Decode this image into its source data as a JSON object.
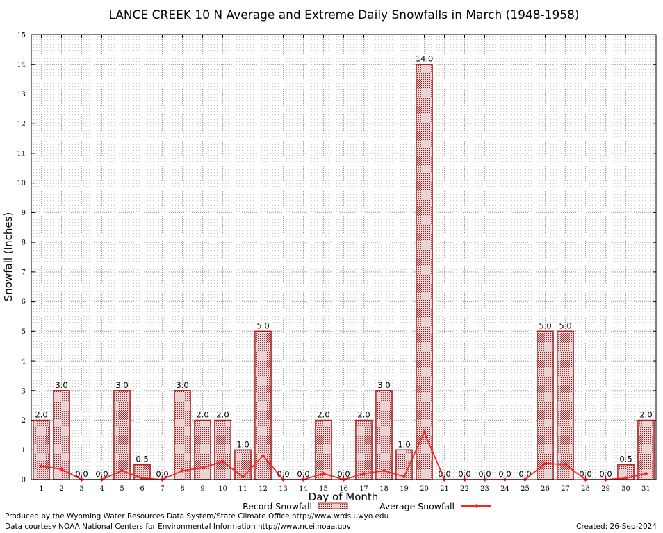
{
  "chart_data": {
    "type": "bar",
    "title": "LANCE CREEK 10 N Average and Extreme Daily Snowfalls in March (1948-1958)",
    "xlabel": "Day of Month",
    "ylabel": "Snowfall (Inches)",
    "ylim": [
      0,
      15
    ],
    "yticks": [
      "0",
      "1",
      "2",
      "3",
      "4",
      "5",
      "6",
      "7",
      "8",
      "9",
      "10",
      "11",
      "12",
      "13",
      "14",
      "15"
    ],
    "categories": [
      "1",
      "2",
      "3",
      "4",
      "5",
      "6",
      "7",
      "8",
      "9",
      "10",
      "11",
      "12",
      "13",
      "14",
      "15",
      "16",
      "17",
      "18",
      "19",
      "20",
      "21",
      "22",
      "23",
      "24",
      "25",
      "26",
      "27",
      "28",
      "29",
      "30",
      "31"
    ],
    "grid": true,
    "legend_position": "bottom-center",
    "series": [
      {
        "name": "Record Snowfall",
        "kind": "bar",
        "values": [
          2.0,
          3.0,
          0.0,
          0.0,
          3.0,
          0.5,
          0.0,
          3.0,
          2.0,
          2.0,
          1.0,
          5.0,
          0.0,
          0.0,
          2.0,
          0.0,
          2.0,
          3.0,
          1.0,
          14.0,
          0.0,
          0.0,
          0.0,
          0.0,
          0.0,
          5.0,
          5.0,
          0.0,
          0.0,
          0.5,
          2.0
        ],
        "labels": [
          "2.0",
          "3.0",
          "0.0",
          "0.0",
          "3.0",
          "0.5",
          "0.0",
          "3.0",
          "2.0",
          "2.0",
          "1.0",
          "5.0",
          "0.0",
          "0.0",
          "2.0",
          "0.0",
          "2.0",
          "3.0",
          "1.0",
          "14.0",
          "0.0",
          "0.0",
          "0.0",
          "0.0",
          "0.0",
          "5.0",
          "5.0",
          "0.0",
          "0.0",
          "0.5",
          "2.0"
        ],
        "color": "#b22222"
      },
      {
        "name": "Average Snowfall",
        "kind": "line",
        "values": [
          0.45,
          0.35,
          0.0,
          0.0,
          0.3,
          0.05,
          0.0,
          0.3,
          0.4,
          0.6,
          0.1,
          0.8,
          0.0,
          0.0,
          0.2,
          0.0,
          0.2,
          0.3,
          0.1,
          1.6,
          0.0,
          0.0,
          0.0,
          0.0,
          0.0,
          0.55,
          0.5,
          0.0,
          0.0,
          0.05,
          0.2
        ],
        "color": "#ff2020"
      }
    ]
  },
  "footer": {
    "produced_by": "Produced by the Wyoming Water Resources Data System/State Climate Office http://www.wrds.uwyo.edu",
    "data_courtesy": "Data courtesy NOAA National Centers for Environmental Information http://www.ncei.noaa.gov",
    "created": "Created: 26-Sep-2024"
  }
}
